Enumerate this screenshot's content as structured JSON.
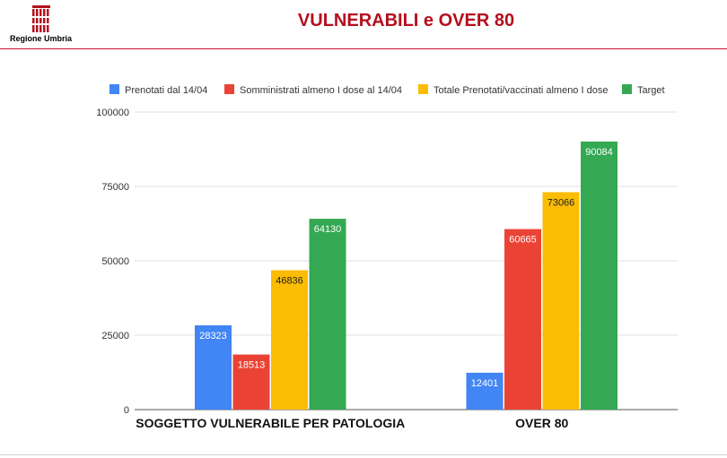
{
  "header": {
    "logo_text": "Regione Umbria",
    "title": "VULNERABILI e OVER 80",
    "accent_color": "#c8102e"
  },
  "chart_data": {
    "type": "bar",
    "categories": [
      "SOGGETTO VULNERABILE PER PATOLOGIA",
      "OVER 80"
    ],
    "series": [
      {
        "name": "Prenotati dal 14/04",
        "color": "#4285f4",
        "values": [
          28323,
          12401
        ]
      },
      {
        "name": "Somministrati almeno I dose al 14/04",
        "color": "#ea4335",
        "values": [
          18513,
          60665
        ]
      },
      {
        "name": "Totale Prenotati/vaccinati almeno I dose",
        "color": "#fbbc04",
        "values": [
          46836,
          73066
        ]
      },
      {
        "name": "Target",
        "color": "#34a853",
        "values": [
          64130,
          90084
        ]
      }
    ],
    "ylim": [
      0,
      100000
    ],
    "yticks": [
      0,
      25000,
      50000,
      75000,
      100000
    ],
    "grid": true,
    "legend_position": "top"
  }
}
